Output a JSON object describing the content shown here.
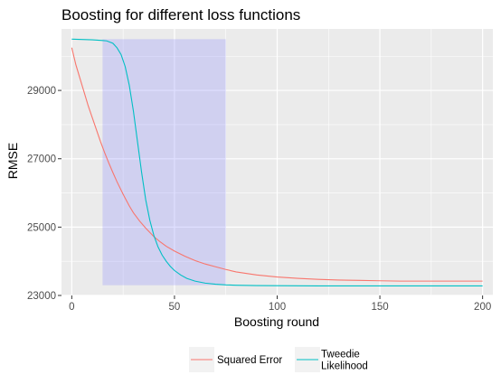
{
  "chart_data": {
    "type": "line",
    "title": "Boosting for different loss functions",
    "xlabel": "Boosting round",
    "ylabel": "RMSE",
    "xlim": [
      -5,
      205
    ],
    "ylim": [
      23000,
      30800
    ],
    "x_ticks": [
      0,
      50,
      100,
      150,
      200
    ],
    "x_minor_ticks": [
      25,
      75,
      125,
      175
    ],
    "y_ticks": [
      23000,
      25000,
      27000,
      29000
    ],
    "y_minor_ticks": [
      24000,
      26000,
      28000,
      30000
    ],
    "x_tick_labels": [
      "0",
      "50",
      "100",
      "150",
      "200"
    ],
    "y_tick_labels": [
      "23000",
      "25000",
      "27000",
      "29000"
    ],
    "grid": true,
    "panel_background": "#ebebeb",
    "legend_position": "bottom",
    "highlight_band": {
      "x": [
        15,
        75
      ],
      "y": [
        23300,
        30500
      ],
      "color": "#8080ff",
      "opacity": 0.25
    },
    "series": [
      {
        "name": "Squared Error",
        "color": "#f8766d",
        "x": [
          0,
          2,
          4,
          6,
          8,
          10,
          12,
          14,
          16,
          18,
          20,
          22,
          25,
          28,
          30,
          33,
          36,
          40,
          43,
          46,
          50,
          55,
          60,
          65,
          70,
          75,
          80,
          90,
          100,
          110,
          120,
          130,
          140,
          150,
          160,
          170,
          180,
          190,
          200
        ],
        "y": [
          30250,
          29750,
          29350,
          28950,
          28550,
          28200,
          27850,
          27500,
          27180,
          26880,
          26600,
          26330,
          25960,
          25620,
          25420,
          25180,
          24970,
          24720,
          24570,
          24440,
          24300,
          24150,
          24020,
          23920,
          23840,
          23760,
          23690,
          23600,
          23540,
          23500,
          23470,
          23450,
          23440,
          23430,
          23420,
          23420,
          23420,
          23420,
          23420
        ]
      },
      {
        "name": "Tweedie\nLikelihood",
        "color": "#00bfc4",
        "x": [
          0,
          5,
          10,
          15,
          17,
          20,
          22,
          24,
          26,
          28,
          30,
          32,
          34,
          36,
          38,
          40,
          42,
          44,
          46,
          48,
          50,
          53,
          56,
          60,
          65,
          70,
          75,
          80,
          90,
          100,
          120,
          140,
          160,
          180,
          200
        ],
        "y": [
          30500,
          30490,
          30480,
          30460,
          30450,
          30380,
          30250,
          30050,
          29700,
          29150,
          28400,
          27500,
          26600,
          25800,
          25200,
          24750,
          24420,
          24180,
          24000,
          23850,
          23730,
          23600,
          23500,
          23420,
          23360,
          23330,
          23310,
          23300,
          23290,
          23285,
          23280,
          23280,
          23280,
          23280,
          23280
        ]
      }
    ]
  }
}
